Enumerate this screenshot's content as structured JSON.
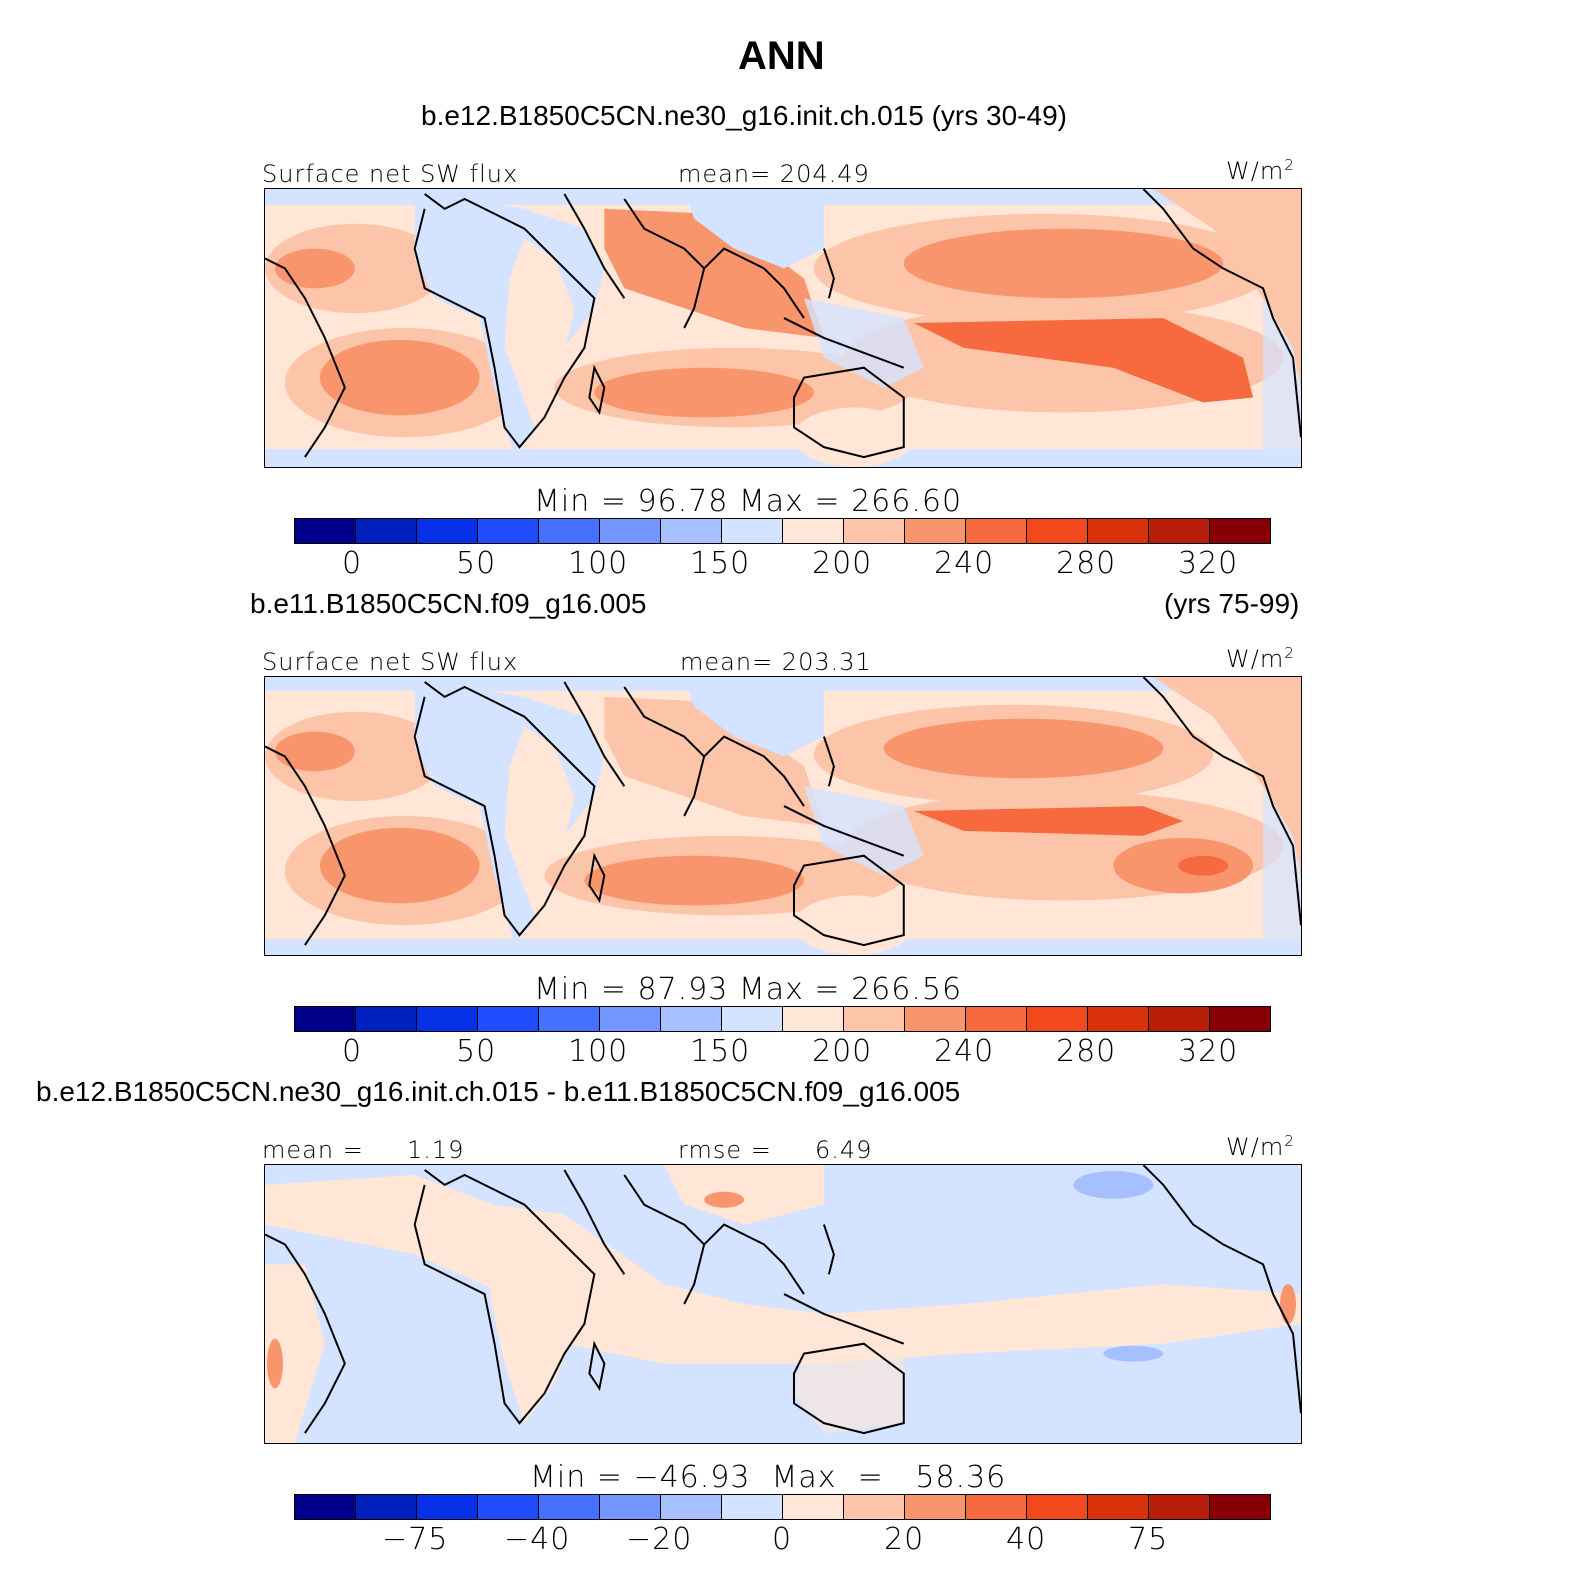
{
  "title": "ANN",
  "panels": [
    {
      "case_left": "b.e12.B1850C5CN.ne30_g16.init.ch.015 (yrs 30-49)",
      "case_right": "",
      "label_left": "Surface net SW flux",
      "label_mid": "mean= 204.49",
      "unit_base": "W/m",
      "unit_exp": "2",
      "minmax": "Min =   96.78  Max  =  266.60",
      "ticks": [
        "0",
        "50",
        "100",
        "150",
        "200",
        "240",
        "280",
        "320"
      ]
    },
    {
      "case_left": "b.e11.B1850C5CN.f09_g16.005",
      "case_right": "(yrs 75-99)",
      "label_left": "Surface net SW flux",
      "label_mid": "mean= 203.31",
      "unit_base": "W/m",
      "unit_exp": "2",
      "minmax": "Min =   87.93  Max  =  266.56",
      "ticks": [
        "0",
        "50",
        "100",
        "150",
        "200",
        "240",
        "280",
        "320"
      ]
    },
    {
      "case_left": "b.e12.B1850C5CN.ne30_g16.init.ch.015 - b.e11.B1850C5CN.f09_g16.005",
      "case_right": "",
      "label_left": "mean =     1.19",
      "label_mid": "rmse =     6.49",
      "unit_base": "W/m",
      "unit_exp": "2",
      "minmax": "Min = −46.93  Max  =   58.36",
      "ticks": [
        "−75",
        "−40",
        "−20",
        "0",
        "20",
        "40",
        "75"
      ]
    }
  ],
  "colorbar_colors": [
    "#00008b",
    "#0020bd",
    "#0530e6",
    "#1f4cff",
    "#4571ff",
    "#7397ff",
    "#a6c0ff",
    "#d4e3ff",
    "#ffe6d6",
    "#fcc4a8",
    "#f8956c",
    "#f76a40",
    "#f2481e",
    "#d8320a",
    "#b81e0a",
    "#870006"
  ]
}
